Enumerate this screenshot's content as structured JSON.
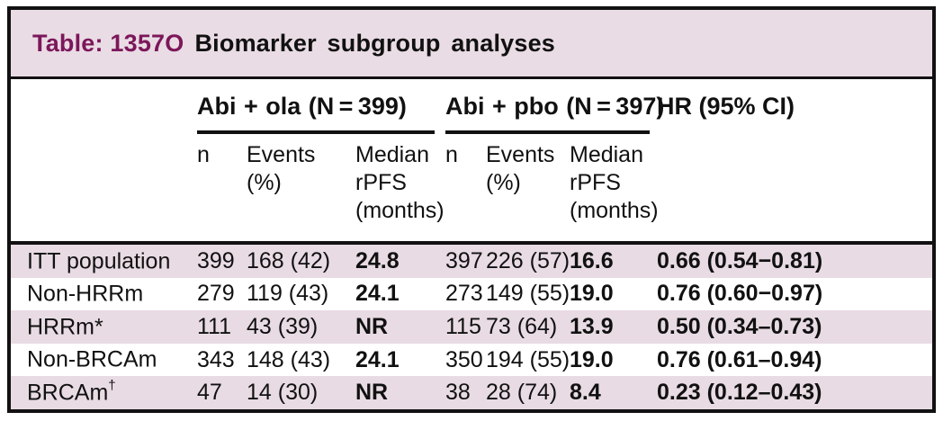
{
  "colors": {
    "accent_title": "#7C175A",
    "row_stripe": "#E8DBE3",
    "title_bar_bg": "#E9DCE4",
    "border": "#111111"
  },
  "chart_data": {
    "type": "table",
    "title": "Table: 1357O Biomarker subgroup analyses",
    "title_accent": "Table: 1357O",
    "title_rest": "Biomarker subgroup analyses",
    "group_headers": [
      "Abi + ola (N = 399)",
      "Abi + pbo (N = 397)",
      "HR (95% CI)"
    ],
    "sub_headers": [
      "n",
      "Events\n(%)",
      "Median\nrPFS\n(months)"
    ],
    "rows": [
      {
        "label": "ITT population",
        "sup": "",
        "cells": [
          "399",
          "168 (42)",
          "24.8",
          "397",
          "226 (57)",
          "16.6",
          "0.66 (0.54−0.81)"
        ]
      },
      {
        "label": "Non-HRRm",
        "sup": "",
        "cells": [
          "279",
          "119 (43)",
          "24.1",
          "273",
          "149 (55)",
          "19.0",
          "0.76 (0.60−0.97)"
        ]
      },
      {
        "label": "HRRm*",
        "sup": "",
        "cells": [
          "111",
          "43 (39)",
          "NR",
          "115",
          "73 (64)",
          "13.9",
          "0.50 (0.34–0.73)"
        ]
      },
      {
        "label": "Non-BRCAm",
        "sup": "",
        "cells": [
          "343",
          "148 (43)",
          "24.1",
          "350",
          "194 (55)",
          "19.0",
          "0.76 (0.61–0.94)"
        ]
      },
      {
        "label": "BRCAm",
        "sup": "†",
        "cells": [
          "47",
          "14 (30)",
          "NR",
          "38",
          "28 (74)",
          "8.4",
          "0.23 (0.12–0.43)"
        ]
      }
    ]
  }
}
